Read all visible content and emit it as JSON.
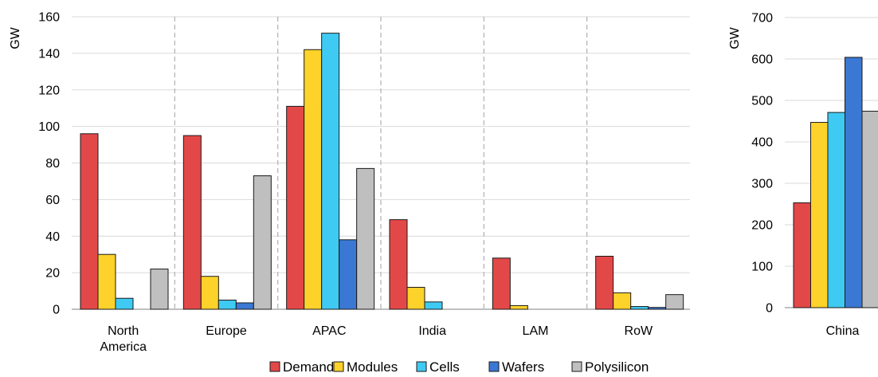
{
  "chart_data": [
    {
      "type": "bar",
      "ylabel": "GW",
      "ylim": [
        0,
        160
      ],
      "yticks": [
        0,
        20,
        40,
        60,
        80,
        100,
        120,
        140,
        160
      ],
      "grid": true,
      "categories": [
        "North America",
        "Europe",
        "APAC",
        "India",
        "LAM",
        "RoW"
      ],
      "category_separators": "dashed",
      "series": [
        {
          "name": "Demand",
          "color": "#e34848",
          "values": [
            96,
            95,
            111,
            49,
            28,
            29
          ]
        },
        {
          "name": "Modules",
          "color": "#fdd22a",
          "values": [
            30,
            18,
            142,
            12,
            2,
            9
          ]
        },
        {
          "name": "Cells",
          "color": "#3fcaf3",
          "values": [
            6,
            5,
            151,
            4,
            0,
            1.5
          ]
        },
        {
          "name": "Wafers",
          "color": "#3a78d4",
          "values": [
            0,
            3.5,
            38,
            0,
            0,
            1
          ]
        },
        {
          "name": "Polysilicon",
          "color": "#bfbfbf",
          "values": [
            22,
            73,
            77,
            0,
            0,
            8
          ]
        }
      ],
      "legend": "bottom"
    },
    {
      "type": "bar",
      "ylabel": "GW",
      "ylim": [
        0,
        700
      ],
      "yticks": [
        0,
        100,
        200,
        300,
        400,
        500,
        600,
        700
      ],
      "grid": true,
      "categories": [
        "China"
      ],
      "series": [
        {
          "name": "Demand",
          "color": "#e34848",
          "values": [
            253
          ]
        },
        {
          "name": "Modules",
          "color": "#fdd22a",
          "values": [
            447
          ]
        },
        {
          "name": "Cells",
          "color": "#3fcaf3",
          "values": [
            471
          ]
        },
        {
          "name": "Wafers",
          "color": "#3a78d4",
          "values": [
            604
          ]
        },
        {
          "name": "Polysilicon",
          "color": "#bfbfbf",
          "values": [
            474
          ]
        }
      ]
    }
  ]
}
